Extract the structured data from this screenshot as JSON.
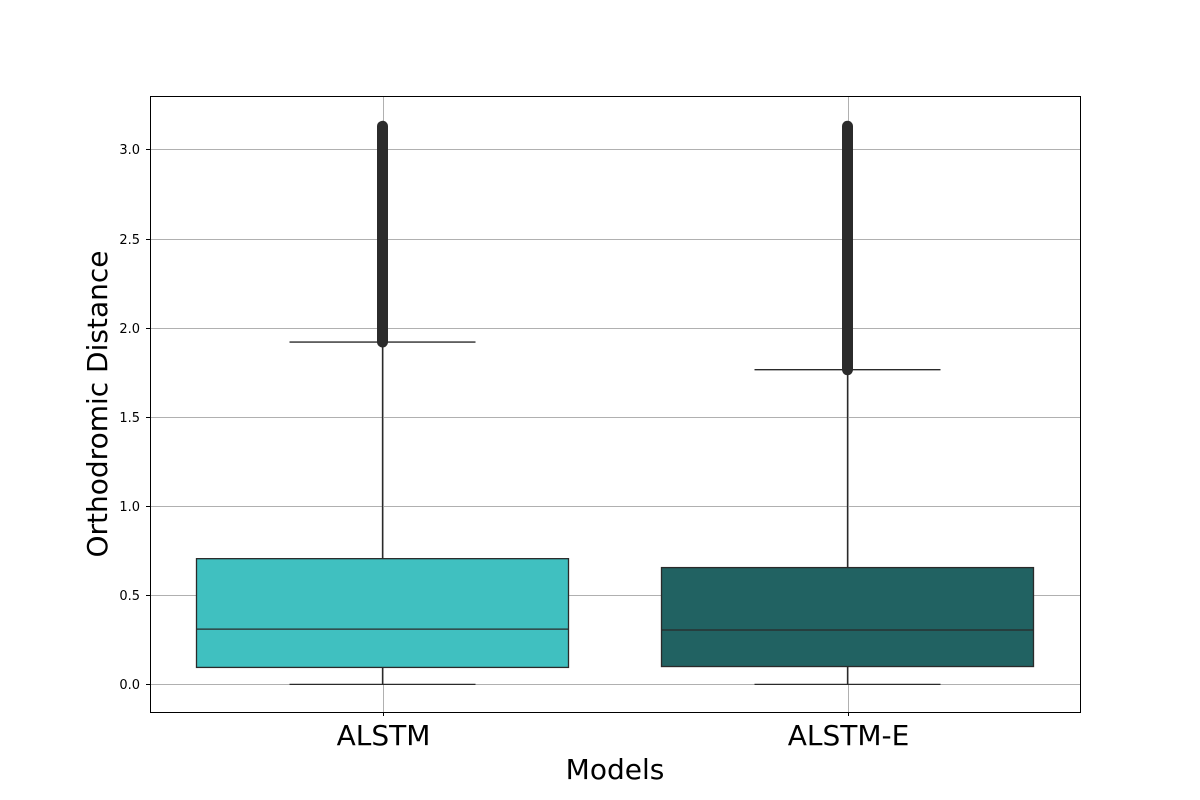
{
  "chart_data": {
    "type": "box",
    "xlabel": "Models",
    "ylabel": "Orthodromic Distance",
    "ylim": [
      -0.155,
      3.3
    ],
    "yticks": [
      0.0,
      0.5,
      1.0,
      1.5,
      2.0,
      2.5,
      3.0
    ],
    "ytick_labels": [
      "0.0",
      "0.5",
      "1.0",
      "1.5",
      "2.0",
      "2.5",
      "3.0"
    ],
    "grid": true,
    "series": [
      {
        "category": "ALSTM",
        "color": "#40c0c0",
        "whisker_low": 0.0,
        "q1": 0.095,
        "median": 0.31,
        "q3": 0.705,
        "whisker_high": 1.92,
        "outliers_range": [
          1.92,
          3.13
        ]
      },
      {
        "category": "ALSTM-E",
        "color": "#216262",
        "whisker_low": 0.0,
        "q1": 0.1,
        "median": 0.305,
        "q3": 0.655,
        "whisker_high": 1.765,
        "outliers_range": [
          1.765,
          3.13
        ]
      }
    ]
  }
}
